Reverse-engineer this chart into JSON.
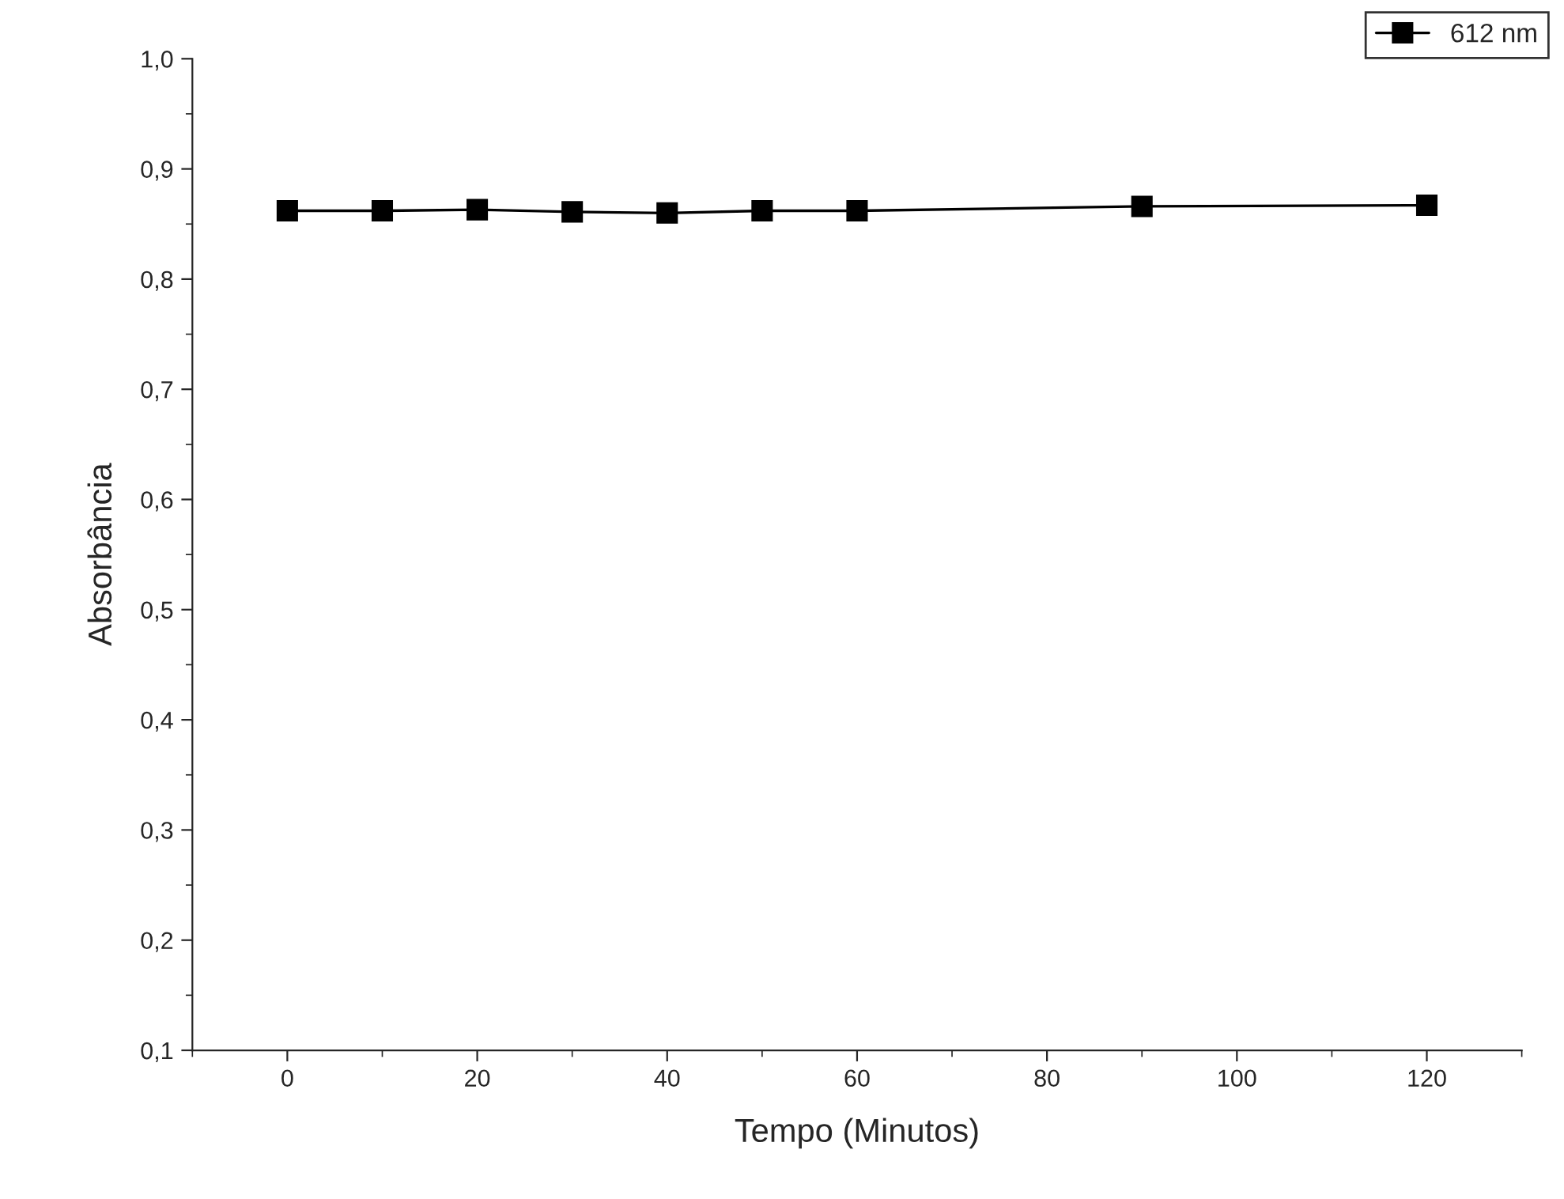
{
  "chart_data": {
    "type": "line",
    "xlabel": "Tempo (Minutos)",
    "ylabel": "Absorbância",
    "x": [
      0,
      10,
      20,
      30,
      40,
      50,
      60,
      90,
      120
    ],
    "series": [
      {
        "name": "612 nm",
        "color": "#000000",
        "values": [
          0.862,
          0.862,
          0.863,
          0.861,
          0.86,
          0.862,
          0.862,
          0.866,
          0.867
        ]
      }
    ],
    "xlim": [
      -10,
      130
    ],
    "xticks": [
      0,
      20,
      40,
      60,
      80,
      100,
      120
    ],
    "ylim": [
      0.1,
      1.0
    ],
    "yticks": [
      {
        "value": 0.1,
        "label": "0,1"
      },
      {
        "value": 0.2,
        "label": "0,2"
      },
      {
        "value": 0.3,
        "label": "0,3"
      },
      {
        "value": 0.4,
        "label": "0,4"
      },
      {
        "value": 0.5,
        "label": "0,5"
      },
      {
        "value": 0.6,
        "label": "0,6"
      },
      {
        "value": 0.7,
        "label": "0,7"
      },
      {
        "value": 0.8,
        "label": "0,8"
      },
      {
        "value": 0.9,
        "label": "0,9"
      },
      {
        "value": 1.0,
        "label": "1,0"
      }
    ],
    "marker": "square",
    "line_style": "solid",
    "grid": false,
    "legend": "top right"
  }
}
